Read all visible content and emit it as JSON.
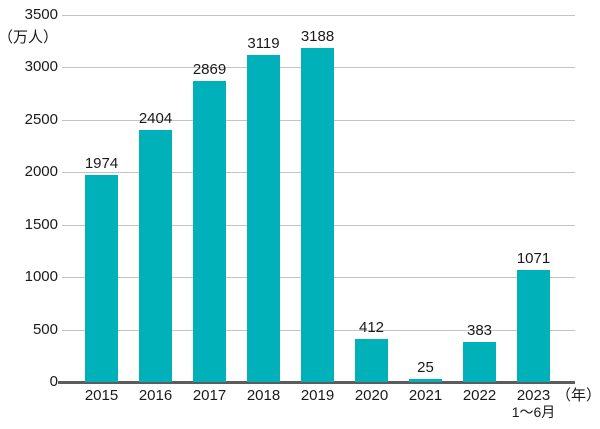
{
  "chart_data": {
    "type": "bar",
    "categories": [
      "2015",
      "2016",
      "2017",
      "2018",
      "2019",
      "2020",
      "2021",
      "2022",
      "2023"
    ],
    "values": [
      1974,
      2404,
      2869,
      3119,
      3188,
      412,
      25,
      383,
      1071
    ],
    "value_labels": [
      "1974",
      "2404",
      "2869",
      "3119",
      "3188",
      "412",
      "25",
      "383",
      "1071"
    ],
    "title": "",
    "xlabel": "（年）",
    "ylabel": "（万人）",
    "ylim": [
      0,
      3500
    ],
    "y_ticks": [
      0,
      500,
      1000,
      1500,
      2000,
      2500,
      3000,
      3500
    ],
    "y_tick_labels": [
      "0",
      "500",
      "1000",
      "1500",
      "2000",
      "2500",
      "3000",
      "3500"
    ],
    "last_category_note": "1～6月",
    "grid": "horizontal",
    "legend": "none",
    "bar_color": "#00b1ba",
    "text_color": "#1a1a1a",
    "gridline_color": "#c4c4c4",
    "axis_line_color": "#5c5c5c"
  }
}
